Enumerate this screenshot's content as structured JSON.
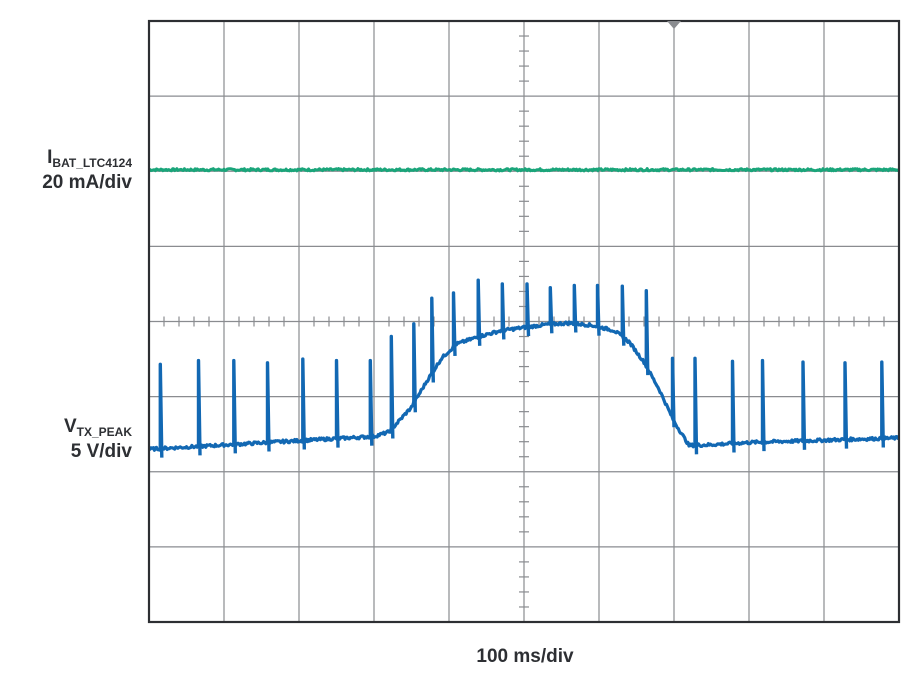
{
  "chart_data": {
    "type": "line",
    "title": "",
    "xlabel": "100 ms/div",
    "grid": true,
    "xlim": [
      0,
      10
    ],
    "ylim": [
      0,
      8
    ],
    "colors": {
      "ibat": "#1aa57a",
      "vtx": "#1268b3",
      "grid": "#8a8c90",
      "frame": "#2d2f33",
      "trigger": "#8a8c90"
    },
    "trigger_marker_x": 7.0,
    "channels": [
      {
        "id": "ibat",
        "label_main": "I",
        "label_sub": "BAT_LTC4124",
        "scale": "20 mA/div",
        "baseline": [
          [
            0,
            6.02
          ],
          [
            10,
            6.02
          ]
        ]
      },
      {
        "id": "vtx",
        "label_main": "V",
        "label_sub": "TX_PEAK",
        "scale": "5 V/div",
        "baseline": [
          [
            0.0,
            2.3
          ],
          [
            3.0,
            2.47
          ],
          [
            3.2,
            2.53
          ],
          [
            3.5,
            2.86
          ],
          [
            3.7,
            3.2
          ],
          [
            3.9,
            3.51
          ],
          [
            4.1,
            3.7
          ],
          [
            4.4,
            3.8
          ],
          [
            4.7,
            3.88
          ],
          [
            5.0,
            3.92
          ],
          [
            5.3,
            3.96
          ],
          [
            5.6,
            3.98
          ],
          [
            5.9,
            3.95
          ],
          [
            6.2,
            3.88
          ],
          [
            6.4,
            3.73
          ],
          [
            6.6,
            3.46
          ],
          [
            6.8,
            3.1
          ],
          [
            7.0,
            2.67
          ],
          [
            7.2,
            2.35
          ],
          [
            7.5,
            2.36
          ],
          [
            8.0,
            2.39
          ],
          [
            9.0,
            2.42
          ],
          [
            10.0,
            2.45
          ]
        ],
        "spikes": [
          [
            0.15,
            3.43
          ],
          [
            0.66,
            3.48
          ],
          [
            1.13,
            3.48
          ],
          [
            1.58,
            3.45
          ],
          [
            2.05,
            3.5
          ],
          [
            2.5,
            3.48
          ],
          [
            2.95,
            3.48
          ],
          [
            3.23,
            3.8
          ],
          [
            3.53,
            3.97
          ],
          [
            3.77,
            4.31
          ],
          [
            4.06,
            4.38
          ],
          [
            4.39,
            4.55
          ],
          [
            4.71,
            4.5
          ],
          [
            5.04,
            4.5
          ],
          [
            5.35,
            4.45
          ],
          [
            5.67,
            4.48
          ],
          [
            5.98,
            4.48
          ],
          [
            6.31,
            4.47
          ],
          [
            6.63,
            4.41
          ],
          [
            6.98,
            3.51
          ],
          [
            7.28,
            3.51
          ],
          [
            7.78,
            3.47
          ],
          [
            8.18,
            3.48
          ],
          [
            8.72,
            3.46
          ],
          [
            9.28,
            3.45
          ],
          [
            9.77,
            3.46
          ]
        ]
      }
    ]
  }
}
